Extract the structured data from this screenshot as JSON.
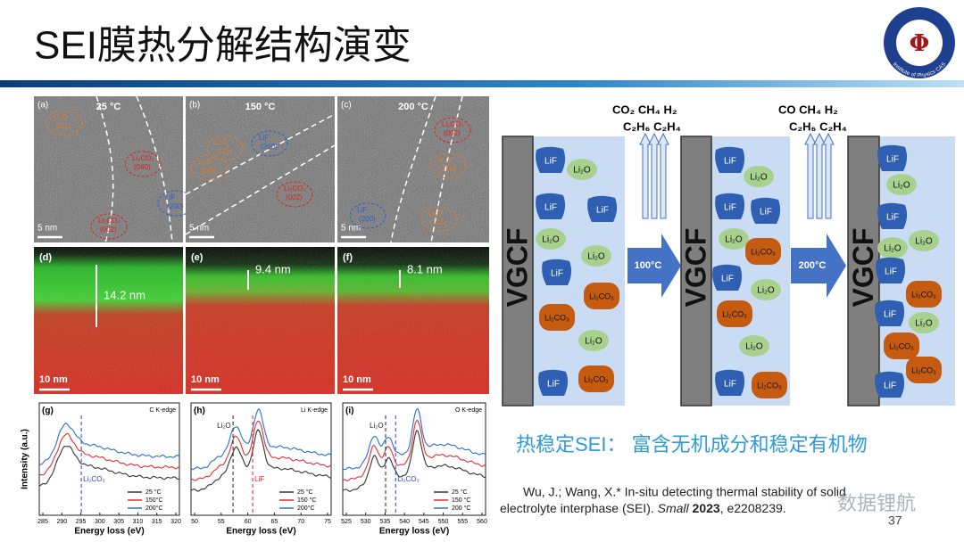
{
  "header": {
    "title": "SEI膜热分解结构演变",
    "logo_text": "Institute of Physics CAS"
  },
  "tem_panels": [
    {
      "label": "(a)",
      "temperature": "25 °C",
      "scale": "5 nm",
      "annotations": [
        {
          "text": "Li₂O",
          "sub": "(111)",
          "color": "#e07b2a"
        },
        {
          "text": "Li₂CO₃",
          "sub": "(040)",
          "color": "#e02020"
        },
        {
          "text": "LiF",
          "sub": "(200)",
          "color": "#2b5fc4"
        },
        {
          "text": "Li₂CO₃",
          "sub": "(002)",
          "color": "#e02020"
        }
      ]
    },
    {
      "label": "(b)",
      "temperature": "150 °C",
      "scale": "5 nm",
      "annotations": [
        {
          "text": "Li₂O",
          "sub": "(111)",
          "color": "#e07b2a"
        },
        {
          "text": "LiF",
          "sub": "(200)",
          "color": "#2b5fc4"
        },
        {
          "text": "Li₂O",
          "sub": "(220)",
          "color": "#e07b2a"
        },
        {
          "text": "Li₂CO₃",
          "sub": "(002)",
          "color": "#e02020"
        }
      ]
    },
    {
      "label": "(c)",
      "temperature": "200 °C",
      "scale": "5 nm",
      "annotations": [
        {
          "text": "Li₂CO₃",
          "sub": "(002)",
          "color": "#e02020"
        },
        {
          "text": "Li₂O",
          "sub": "(220)",
          "color": "#e07b2a"
        },
        {
          "text": "LiF",
          "sub": "(200)",
          "color": "#2b5fc4"
        },
        {
          "text": "Li₂O",
          "sub": "(111)",
          "color": "#e07b2a"
        }
      ]
    }
  ],
  "eels_maps": [
    {
      "label": "(d)",
      "thickness": "14.2 nm",
      "scale": "10 nm"
    },
    {
      "label": "(e)",
      "thickness": "9.4 nm",
      "scale": "10 nm"
    },
    {
      "label": "(f)",
      "thickness": "8.1 nm",
      "scale": "10 nm"
    }
  ],
  "spectra": {
    "ylabel": "Intensity (a.u.)",
    "xlabel": "Energy loss (eV)",
    "colors": [
      "#333333",
      "#e03030",
      "#2a6fd0"
    ],
    "panels": [
      {
        "label": "(g)",
        "edge": "C K-edge",
        "xticks": [
          285,
          290,
          295,
          300,
          305,
          310,
          315,
          320
        ],
        "markers": [
          {
            "text": "Li₂CO₃",
            "color": "#2b3fc4"
          }
        ],
        "legend": [
          "25 °C",
          "150°C",
          "200°C"
        ]
      },
      {
        "label": "(h)",
        "edge": "Li K-edge",
        "xticks": [
          50,
          55,
          60,
          65,
          70,
          75
        ],
        "markers": [
          {
            "text": "Li₂O",
            "color": "#222222"
          },
          {
            "text": "LiF",
            "color": "#e02020"
          }
        ],
        "legend": [
          "25 °C",
          "150 °C",
          "200°C"
        ]
      },
      {
        "label": "(i)",
        "edge": "O K-edge",
        "xticks": [
          525,
          530,
          535,
          540,
          545,
          550,
          555,
          560
        ],
        "markers": [
          {
            "text": "Li₂O",
            "color": "#222222"
          },
          {
            "text": "Li₂CO₃",
            "color": "#2b3fc4"
          }
        ],
        "legend": [
          "25 °C",
          "150 °C",
          "200 °C"
        ]
      }
    ]
  },
  "diagram": {
    "substrate": "VGCF",
    "gases": [
      {
        "line1": "CO₂  CH₄  H₂",
        "line2": "C₂H₆  C₂H₄"
      },
      {
        "line1": "CO   CH₄  H₂",
        "line2": "C₂H₆  C₂H₄"
      }
    ],
    "steps": [
      "100°C",
      "200°C"
    ],
    "states": [
      [
        {
          "text": "LiF",
          "color": "#2f5fb3"
        },
        {
          "text": "Li₂O",
          "color": "#a9d18e"
        },
        {
          "text": "LiF",
          "color": "#2f5fb3"
        },
        {
          "text": "LiF",
          "color": "#2f5fb3"
        },
        {
          "text": "Li₂O",
          "color": "#a9d18e"
        },
        {
          "text": "Li₂O",
          "color": "#a9d18e"
        },
        {
          "text": "LiF",
          "color": "#2f5fb3"
        },
        {
          "text": "Li₂CO₃",
          "color": "#c55a11"
        },
        {
          "text": "Li₂CO₃",
          "color": "#c55a11"
        },
        {
          "text": "Li₂O",
          "color": "#a9d18e"
        },
        {
          "text": "LiF",
          "color": "#2f5fb3"
        },
        {
          "text": "Li₂CO₃",
          "color": "#c55a11"
        }
      ],
      [
        {
          "text": "LiF",
          "color": "#2f5fb3"
        },
        {
          "text": "Li₂O",
          "color": "#a9d18e"
        },
        {
          "text": "LiF",
          "color": "#2f5fb3"
        },
        {
          "text": "LiF",
          "color": "#2f5fb3"
        },
        {
          "text": "Li₂O",
          "color": "#a9d18e"
        },
        {
          "text": "Li₂CO₃",
          "color": "#c55a11"
        },
        {
          "text": "LiF",
          "color": "#2f5fb3"
        },
        {
          "text": "Li₂O",
          "color": "#a9d18e"
        },
        {
          "text": "Li₂CO₃",
          "color": "#c55a11"
        },
        {
          "text": "Li₂O",
          "color": "#a9d18e"
        },
        {
          "text": "LiF",
          "color": "#2f5fb3"
        },
        {
          "text": "Li₂CO₃",
          "color": "#c55a11"
        }
      ],
      [
        {
          "text": "LiF",
          "color": "#2f5fb3"
        },
        {
          "text": "Li₂O",
          "color": "#a9d18e"
        },
        {
          "text": "LiF",
          "color": "#2f5fb3"
        },
        {
          "text": "Li₂O",
          "color": "#a9d18e"
        },
        {
          "text": "Li₂O",
          "color": "#a9d18e"
        },
        {
          "text": "LiF",
          "color": "#2f5fb3"
        },
        {
          "text": "Li₂CO₃",
          "color": "#c55a11"
        },
        {
          "text": "LiF",
          "color": "#2f5fb3"
        },
        {
          "text": "Li₂O",
          "color": "#a9d18e"
        },
        {
          "text": "Li₂CO₃",
          "color": "#c55a11"
        },
        {
          "text": "LiF",
          "color": "#2f5fb3"
        },
        {
          "text": "Li₂CO₃",
          "color": "#c55a11"
        }
      ]
    ]
  },
  "caption": "热稳定SEI： 富含无机成分和稳定有机物",
  "citation": {
    "line1": "Wu, J.; Wang, X.* In-situ detecting thermal stability of solid",
    "line2": "electrolyte interphase (SEI). ",
    "journal": "Small",
    "year": "2023",
    "pages": ", e2208239."
  },
  "watermark": "数据锂航",
  "page": "37"
}
